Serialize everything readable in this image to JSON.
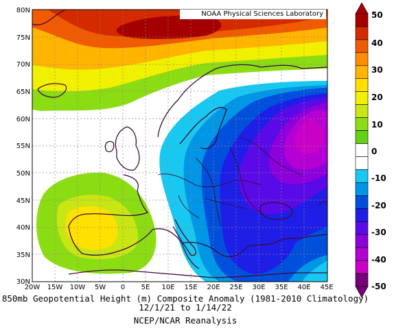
{
  "credit": "NOAA Physical Sciences Laboratory",
  "caption": {
    "line1": "850mb Geopotential Height (m) Composite Anomaly (1981-2010 Climatology)",
    "line2": "12/1/21 to 1/14/22",
    "line3": "NCEP/NCAR Reanalysis"
  },
  "map": {
    "lon_range": [
      -20,
      45
    ],
    "lat_range": [
      30,
      80
    ],
    "lon_ticks": [
      "20W",
      "15W",
      "10W",
      "5W",
      "0",
      "5E",
      "10E",
      "15E",
      "20E",
      "25E",
      "30E",
      "35E",
      "40E",
      "45E"
    ],
    "lat_ticks": [
      "80N",
      "75N",
      "70N",
      "65N",
      "60N",
      "55N",
      "50N",
      "45N",
      "40N",
      "35N",
      "30N"
    ],
    "field": "850mb geopotential height anomaly",
    "units": "m"
  },
  "colorbar": {
    "levels": [
      "50",
      "40",
      "30",
      "20",
      "10",
      "0",
      "-10",
      "-20",
      "-30",
      "-40",
      "-50"
    ],
    "colors": [
      "#a50000",
      "#d42a00",
      "#f05a00",
      "#ff8c00",
      "#ffb400",
      "#ffe100",
      "#f0f000",
      "#c8e614",
      "#8cdc14",
      "#64d214",
      "#ffffff",
      "#ffffff",
      "#19c8f0",
      "#0096e6",
      "#0050dc",
      "#1e1ee6",
      "#5a0ae6",
      "#8c00dc",
      "#b400d2",
      "#c800c8",
      "#780078"
    ]
  }
}
